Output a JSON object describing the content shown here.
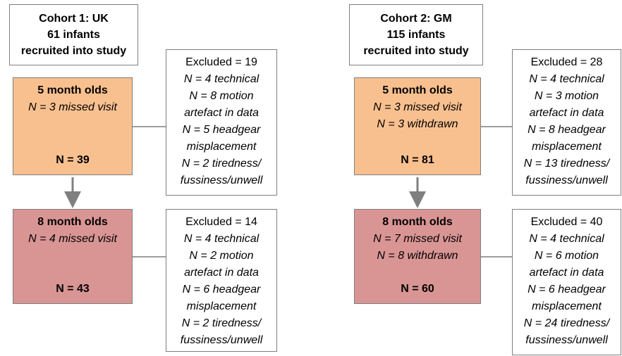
{
  "cohorts": [
    {
      "header": [
        "Cohort 1: UK",
        "61 infants",
        "recruited into study"
      ],
      "visits": [
        {
          "title": "5 month olds",
          "notes": [
            "N = 3 missed visit"
          ],
          "n": "N = 39",
          "excluded": {
            "title": "Excluded = 19",
            "reasons": [
              "N = 4 technical",
              "N = 8 motion",
              "artefact in data",
              "N = 5 headgear",
              "misplacement",
              "N = 2 tiredness/",
              "fussiness/unwell"
            ]
          }
        },
        {
          "title": "8 month olds",
          "notes": [
            "N = 4 missed visit"
          ],
          "n": "N = 43",
          "excluded": {
            "title": "Excluded = 14",
            "reasons": [
              "N = 4 technical",
              "N = 2 motion",
              "artefact in data",
              "N = 6 headgear",
              "misplacement",
              "N = 2 tiredness/",
              "fussiness/unwell"
            ]
          }
        }
      ]
    },
    {
      "header": [
        "Cohort 2: GM",
        "115 infants",
        "recruited into study"
      ],
      "visits": [
        {
          "title": "5 month olds",
          "notes": [
            "N = 3 missed visit",
            "N = 3 withdrawn"
          ],
          "n": "N = 81",
          "excluded": {
            "title": "Excluded = 28",
            "reasons": [
              "N = 4 technical",
              "N = 3 motion",
              "artefact in data",
              "N = 8 headgear",
              "misplacement",
              "N = 13 tiredness/",
              "fussiness/unwell"
            ]
          }
        },
        {
          "title": "8 month olds",
          "notes": [
            "N = 7 missed visit",
            "N = 8 withdrawn"
          ],
          "n": "N = 60",
          "excluded": {
            "title": "Excluded = 40",
            "reasons": [
              "N = 4 technical",
              "N = 6 motion",
              "artefact in data",
              "N = 6 headgear",
              "misplacement",
              "N = 24 tiredness/",
              "fussiness/unwell"
            ]
          }
        }
      ]
    }
  ]
}
